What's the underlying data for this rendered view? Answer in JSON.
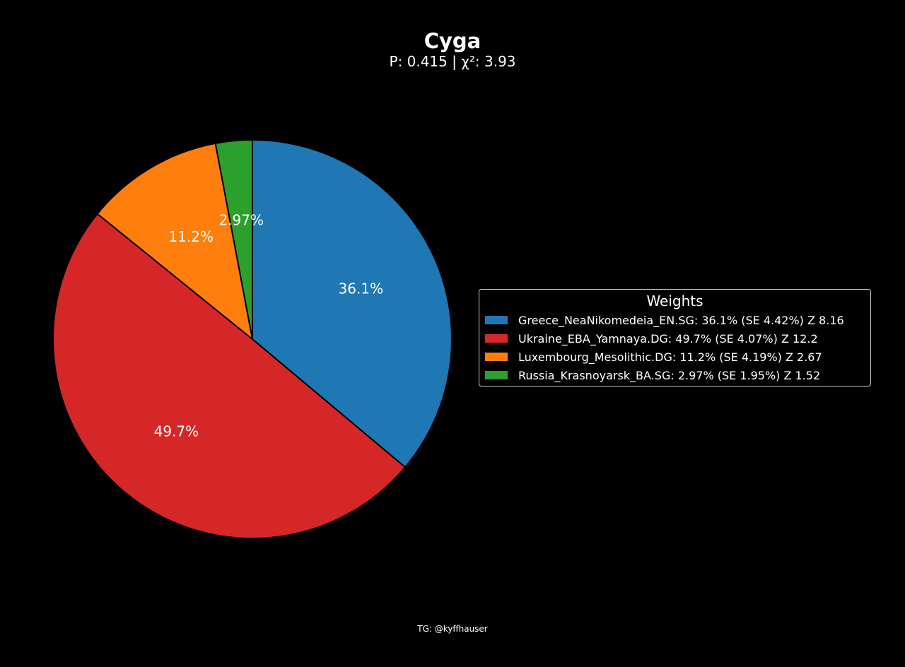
{
  "chart_data": {
    "type": "pie",
    "title": "Cyga",
    "subtitle": "P: 0.415 | χ²: 3.93",
    "slices": [
      {
        "label": "Greece_NeaNikomedeia_EN.SG",
        "value": 36.1,
        "pct_label": "36.1%",
        "legend_text": "Greece_NeaNikomedeia_EN.SG: 36.1% (SE 4.42%) Z 8.16",
        "color": "#1f77b4"
      },
      {
        "label": "Ukraine_EBA_Yamnaya.DG",
        "value": 49.7,
        "pct_label": "49.7%",
        "legend_text": "Ukraine_EBA_Yamnaya.DG: 49.7% (SE 4.07%) Z 12.2",
        "color": "#d62728"
      },
      {
        "label": "Luxembourg_Mesolithic.DG",
        "value": 11.2,
        "pct_label": "11.2%",
        "legend_text": "Luxembourg_Mesolithic.DG: 11.2% (SE 4.19%) Z 2.67",
        "color": "#ff7f0e"
      },
      {
        "label": "Russia_Krasnoyarsk_BA.SG",
        "value": 2.97,
        "pct_label": "2.97%",
        "legend_text": "Russia_Krasnoyarsk_BA.SG: 2.97% (SE 1.95%) Z 1.52",
        "color": "#2ca02c"
      }
    ],
    "legend_title": "Weights",
    "legend_position": "right"
  },
  "footer": "TG: @kyffhauser"
}
